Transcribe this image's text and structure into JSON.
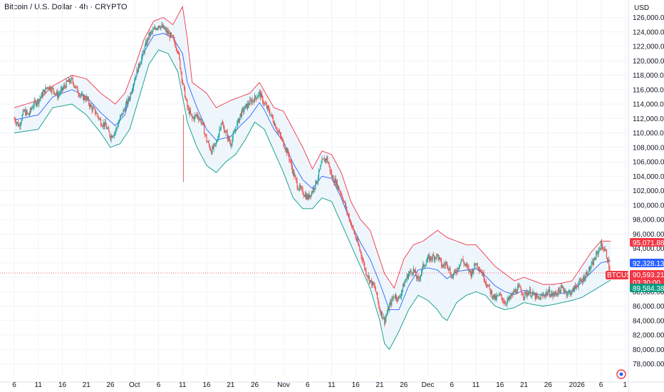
{
  "header": {
    "title": "Bitcoin / U.S. Dollar · 4h · CRYPTO",
    "currency": "USD"
  },
  "price_badges": {
    "upper_band": "95,071.88",
    "middle_band": "92,328.13",
    "symbol": "BTCUSD",
    "last_price": "90,593.21",
    "countdown": "03:30:00",
    "lower_band": "89,584.38"
  },
  "colors": {
    "up": "#26a69a",
    "down": "#ef5350",
    "upper_band": "#f23645",
    "lower_band": "#089981",
    "middle_band": "#2962ff",
    "band_fill": "#e8f3fb",
    "badge_red": "#f23645",
    "badge_blue": "#2962ff",
    "badge_green": "#089981"
  },
  "chart_data": {
    "type": "candlestick",
    "title": "Bitcoin / U.S. Dollar · 4h · CRYPTO",
    "ylabel": "USD",
    "ylim": [
      77000,
      127000
    ],
    "y_ticks": [
      126000,
      124000,
      122000,
      120000,
      118000,
      116000,
      114000,
      112000,
      110000,
      108000,
      106000,
      104000,
      102000,
      100000,
      98000,
      96000,
      94000,
      92000,
      90000,
      88000,
      86000,
      84000,
      82000,
      80000,
      78000
    ],
    "y_tick_labels": [
      "126,000.00",
      "124,000.00",
      "122,000.00",
      "120,000.00",
      "118,000.00",
      "116,000.00",
      "114,000.00",
      "112,000.00",
      "110,000.00",
      "108,000.00",
      "106,000.00",
      "104,000.00",
      "102,000.00",
      "100,000.00",
      "98,000.00",
      "96,000.00",
      "94,000.00",
      "92,000.00",
      "90,000.00",
      "88,000.00",
      "86,000.00",
      "84,000.00",
      "82,000.00",
      "80,000.00",
      "78,000.00"
    ],
    "x_tick_labels": [
      "6",
      "11",
      "16",
      "21",
      "26",
      "Oct",
      "6",
      "11",
      "16",
      "21",
      "26",
      "Nov",
      "6",
      "11",
      "16",
      "21",
      "26",
      "Dec",
      "6",
      "11",
      "16",
      "21",
      "26",
      "2026",
      "6",
      "1"
    ],
    "x_tick_days": [
      0,
      5,
      10,
      15,
      20,
      25,
      30,
      35,
      40,
      45,
      50,
      56,
      61,
      66,
      71,
      76,
      81,
      86,
      91,
      96,
      101,
      106,
      111,
      117,
      122,
      127
    ],
    "last_price": 90593.21,
    "grid": true,
    "indicator": "Bollinger Bands",
    "price_path": [
      [
        0,
        112000
      ],
      [
        1,
        111000
      ],
      [
        2,
        113000
      ],
      [
        3,
        112500
      ],
      [
        4,
        114000
      ],
      [
        5,
        114500
      ],
      [
        6,
        115500
      ],
      [
        7,
        116500
      ],
      [
        8,
        116000
      ],
      [
        9,
        115200
      ],
      [
        10,
        116000
      ],
      [
        11,
        117000
      ],
      [
        12,
        117300
      ],
      [
        13,
        116000
      ],
      [
        14,
        115000
      ],
      [
        15,
        114800
      ],
      [
        16,
        113500
      ],
      [
        17,
        112800
      ],
      [
        18,
        111500
      ],
      [
        19,
        111000
      ],
      [
        20,
        109500
      ],
      [
        21,
        110200
      ],
      [
        22,
        112000
      ],
      [
        23,
        113500
      ],
      [
        24,
        115000
      ],
      [
        25,
        117500
      ],
      [
        26,
        119500
      ],
      [
        27,
        121500
      ],
      [
        28,
        123500
      ],
      [
        29,
        124200
      ],
      [
        30,
        125000
      ],
      [
        31,
        124500
      ],
      [
        32,
        123800
      ],
      [
        33,
        123000
      ],
      [
        34,
        121500
      ],
      [
        35,
        117000
      ],
      [
        36,
        113500
      ],
      [
        37,
        112000
      ],
      [
        38,
        112500
      ],
      [
        39,
        111500
      ],
      [
        40,
        109000
      ],
      [
        41,
        107500
      ],
      [
        42,
        108500
      ],
      [
        43,
        111500
      ],
      [
        44,
        110000
      ],
      [
        45,
        108500
      ],
      [
        46,
        110500
      ],
      [
        47,
        112500
      ],
      [
        48,
        113500
      ],
      [
        49,
        114200
      ],
      [
        50,
        114800
      ],
      [
        51,
        115500
      ],
      [
        52,
        114000
      ],
      [
        53,
        113000
      ],
      [
        54,
        111500
      ],
      [
        55,
        110000
      ],
      [
        56,
        108500
      ],
      [
        57,
        107000
      ],
      [
        58,
        104500
      ],
      [
        59,
        102500
      ],
      [
        60,
        101800
      ],
      [
        61,
        101000
      ],
      [
        62,
        102000
      ],
      [
        63,
        103500
      ],
      [
        64,
        106000
      ],
      [
        65,
        106500
      ],
      [
        66,
        104000
      ],
      [
        67,
        103000
      ],
      [
        68,
        101500
      ],
      [
        69,
        99500
      ],
      [
        70,
        97500
      ],
      [
        71,
        95500
      ],
      [
        72,
        93500
      ],
      [
        73,
        91000
      ],
      [
        74,
        89500
      ],
      [
        75,
        88500
      ],
      [
        76,
        85500
      ],
      [
        77,
        84000
      ],
      [
        78,
        86000
      ],
      [
        79,
        87500
      ],
      [
        80,
        87000
      ],
      [
        81,
        89000
      ],
      [
        82,
        90500
      ],
      [
        83,
        91000
      ],
      [
        84,
        89500
      ],
      [
        85,
        91500
      ],
      [
        86,
        92500
      ],
      [
        87,
        92800
      ],
      [
        88,
        93000
      ],
      [
        89,
        91500
      ],
      [
        90,
        92000
      ],
      [
        91,
        90000
      ],
      [
        92,
        91000
      ],
      [
        93,
        92500
      ],
      [
        94,
        91500
      ],
      [
        95,
        90500
      ],
      [
        96,
        92000
      ],
      [
        97,
        91000
      ],
      [
        98,
        89500
      ],
      [
        99,
        88000
      ],
      [
        100,
        87000
      ],
      [
        101,
        87500
      ],
      [
        102,
        86500
      ],
      [
        103,
        87000
      ],
      [
        104,
        88000
      ],
      [
        105,
        88500
      ],
      [
        106,
        87500
      ],
      [
        107,
        88000
      ],
      [
        108,
        87500
      ],
      [
        109,
        87000
      ],
      [
        110,
        87500
      ],
      [
        111,
        88000
      ],
      [
        112,
        87500
      ],
      [
        113,
        88000
      ],
      [
        114,
        88500
      ],
      [
        115,
        87800
      ],
      [
        116,
        88000
      ],
      [
        117,
        89000
      ],
      [
        118,
        89500
      ],
      [
        119,
        90500
      ],
      [
        120,
        91500
      ],
      [
        121,
        93000
      ],
      [
        122,
        94500
      ],
      [
        123,
        93500
      ],
      [
        124,
        90600
      ]
    ],
    "upper_band": [
      [
        0,
        113500
      ],
      [
        5,
        114500
      ],
      [
        8,
        116500
      ],
      [
        12,
        118000
      ],
      [
        15,
        117500
      ],
      [
        18,
        115500
      ],
      [
        21,
        114000
      ],
      [
        23,
        115500
      ],
      [
        25,
        119000
      ],
      [
        27,
        123000
      ],
      [
        29,
        125500
      ],
      [
        31,
        126000
      ],
      [
        33,
        125000
      ],
      [
        35,
        127500
      ],
      [
        36,
        123000
      ],
      [
        37,
        117000
      ],
      [
        40,
        115500
      ],
      [
        42,
        113500
      ],
      [
        45,
        114500
      ],
      [
        47,
        115000
      ],
      [
        49,
        115500
      ],
      [
        51,
        117000
      ],
      [
        52,
        115800
      ],
      [
        54,
        113500
      ],
      [
        56,
        113000
      ],
      [
        58,
        110500
      ],
      [
        60,
        108000
      ],
      [
        62,
        105000
      ],
      [
        64,
        107500
      ],
      [
        66,
        107000
      ],
      [
        68,
        104500
      ],
      [
        70,
        100500
      ],
      [
        72,
        98000
      ],
      [
        74,
        96500
      ],
      [
        75,
        94500
      ],
      [
        77,
        90500
      ],
      [
        79,
        88500
      ],
      [
        81,
        92500
      ],
      [
        83,
        94500
      ],
      [
        85,
        95000
      ],
      [
        86,
        95500
      ],
      [
        88,
        96500
      ],
      [
        90,
        95500
      ],
      [
        92,
        95000
      ],
      [
        94,
        94500
      ],
      [
        96,
        94500
      ],
      [
        98,
        93000
      ],
      [
        100,
        91500
      ],
      [
        102,
        90500
      ],
      [
        104,
        89500
      ],
      [
        106,
        90000
      ],
      [
        108,
        89500
      ],
      [
        110,
        89000
      ],
      [
        112,
        89000
      ],
      [
        114,
        89200
      ],
      [
        116,
        89500
      ],
      [
        118,
        91500
      ],
      [
        120,
        93500
      ],
      [
        122,
        95000
      ],
      [
        124,
        95000
      ]
    ],
    "lower_band": [
      [
        0,
        110000
      ],
      [
        5,
        110500
      ],
      [
        8,
        113500
      ],
      [
        12,
        114000
      ],
      [
        15,
        112500
      ],
      [
        18,
        110000
      ],
      [
        20,
        108000
      ],
      [
        22,
        108500
      ],
      [
        24,
        110500
      ],
      [
        26,
        115000
      ],
      [
        28,
        119500
      ],
      [
        30,
        121500
      ],
      [
        32,
        121000
      ],
      [
        34,
        118500
      ],
      [
        36,
        111500
      ],
      [
        38,
        108000
      ],
      [
        40,
        105500
      ],
      [
        42,
        104500
      ],
      [
        44,
        106000
      ],
      [
        46,
        107000
      ],
      [
        48,
        109000
      ],
      [
        50,
        111500
      ],
      [
        52,
        110500
      ],
      [
        54,
        107500
      ],
      [
        56,
        104500
      ],
      [
        58,
        101000
      ],
      [
        60,
        99500
      ],
      [
        62,
        99500
      ],
      [
        64,
        101000
      ],
      [
        66,
        100500
      ],
      [
        68,
        97500
      ],
      [
        70,
        94500
      ],
      [
        72,
        91500
      ],
      [
        74,
        88500
      ],
      [
        76,
        84000
      ],
      [
        77,
        80800
      ],
      [
        78,
        80000
      ],
      [
        80,
        82500
      ],
      [
        82,
        85500
      ],
      [
        84,
        87500
      ],
      [
        86,
        86800
      ],
      [
        88,
        85500
      ],
      [
        89,
        84500
      ],
      [
        90,
        84000
      ],
      [
        92,
        86500
      ],
      [
        94,
        87500
      ],
      [
        96,
        88000
      ],
      [
        98,
        87500
      ],
      [
        100,
        86000
      ],
      [
        102,
        85500
      ],
      [
        104,
        85800
      ],
      [
        106,
        86500
      ],
      [
        108,
        86200
      ],
      [
        110,
        86000
      ],
      [
        112,
        86200
      ],
      [
        114,
        86500
      ],
      [
        116,
        86800
      ],
      [
        118,
        87200
      ],
      [
        120,
        88000
      ],
      [
        122,
        88800
      ],
      [
        124,
        89600
      ]
    ],
    "middle_band": [
      [
        0,
        111800
      ],
      [
        5,
        112500
      ],
      [
        8,
        115000
      ],
      [
        12,
        116000
      ],
      [
        15,
        115000
      ],
      [
        18,
        112800
      ],
      [
        21,
        111000
      ],
      [
        23,
        112500
      ],
      [
        25,
        117000
      ],
      [
        27,
        121200
      ],
      [
        29,
        123500
      ],
      [
        31,
        123800
      ],
      [
        33,
        123200
      ],
      [
        35,
        121000
      ],
      [
        36,
        117000
      ],
      [
        38,
        113500
      ],
      [
        40,
        110500
      ],
      [
        42,
        109000
      ],
      [
        45,
        109500
      ],
      [
        47,
        111000
      ],
      [
        49,
        112300
      ],
      [
        51,
        114200
      ],
      [
        52,
        113200
      ],
      [
        54,
        110500
      ],
      [
        56,
        108800
      ],
      [
        58,
        105800
      ],
      [
        60,
        103500
      ],
      [
        62,
        102300
      ],
      [
        64,
        104000
      ],
      [
        66,
        103700
      ],
      [
        68,
        101000
      ],
      [
        70,
        97500
      ],
      [
        72,
        94800
      ],
      [
        74,
        92500
      ],
      [
        76,
        89200
      ],
      [
        78,
        85500
      ],
      [
        80,
        85500
      ],
      [
        82,
        88800
      ],
      [
        84,
        91000
      ],
      [
        86,
        91300
      ],
      [
        88,
        91000
      ],
      [
        90,
        89800
      ],
      [
        92,
        90800
      ],
      [
        94,
        91000
      ],
      [
        96,
        91200
      ],
      [
        98,
        90200
      ],
      [
        100,
        88800
      ],
      [
        102,
        88000
      ],
      [
        104,
        87600
      ],
      [
        106,
        88200
      ],
      [
        108,
        87800
      ],
      [
        110,
        87500
      ],
      [
        112,
        87600
      ],
      [
        114,
        87800
      ],
      [
        116,
        88100
      ],
      [
        118,
        89300
      ],
      [
        120,
        90700
      ],
      [
        122,
        92000
      ],
      [
        124,
        92300
      ]
    ]
  }
}
